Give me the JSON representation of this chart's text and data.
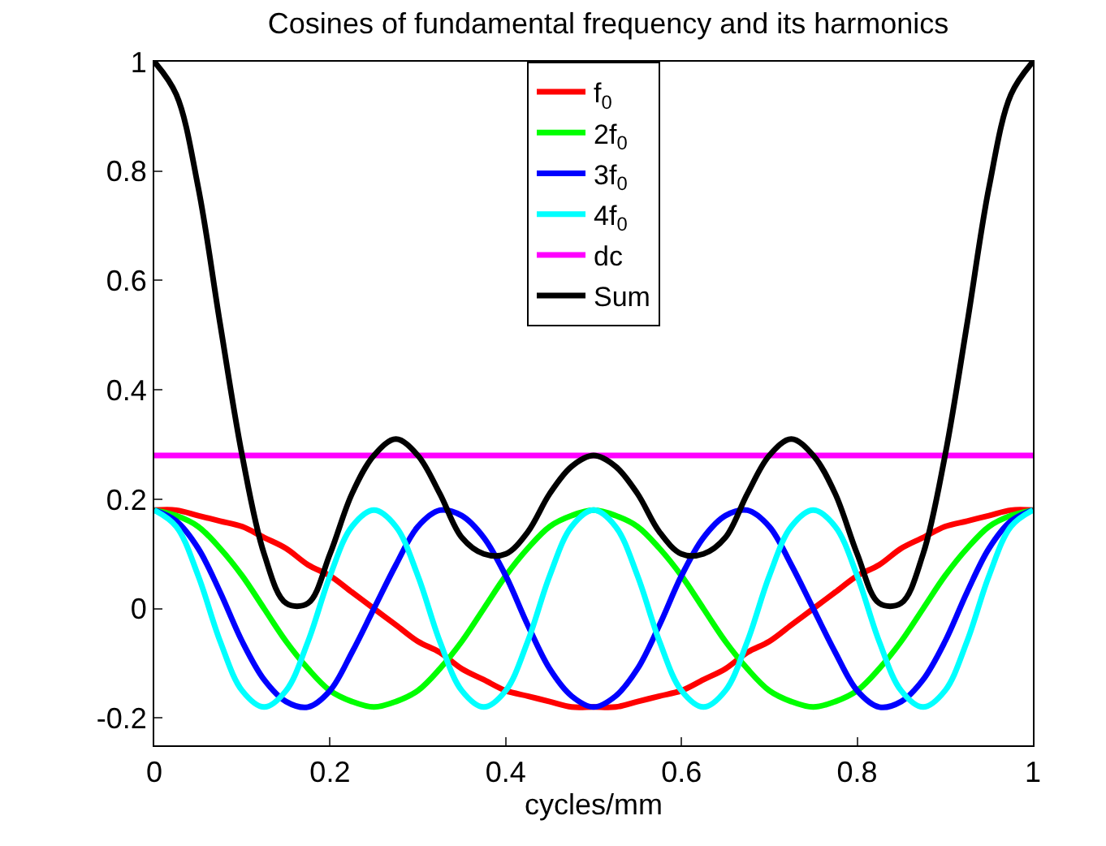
{
  "chart_data": {
    "type": "line",
    "title": "Cosines of fundamental frequency and its harmonics",
    "xlabel": "cycles/mm",
    "x": [
      0,
      0.025,
      0.05,
      0.075,
      0.1,
      0.125,
      0.15,
      0.175,
      0.2,
      0.225,
      0.25,
      0.275,
      0.3,
      0.325,
      0.35,
      0.375,
      0.4,
      0.425,
      0.45,
      0.475,
      0.5,
      0.525,
      0.55,
      0.575,
      0.6,
      0.625,
      0.65,
      0.675,
      0.7,
      0.725,
      0.75,
      0.775,
      0.8,
      0.825,
      0.85,
      0.875,
      0.9,
      0.925,
      0.95,
      0.975,
      1
    ],
    "series": [
      {
        "name": "f$_{0}$",
        "color": "#ff0000",
        "values": [
          0.18,
          0.18,
          0.17,
          0.16,
          0.15,
          0.13,
          0.11,
          0.08,
          0.06,
          0.03,
          0,
          -0.03,
          -0.06,
          -0.08,
          -0.11,
          -0.13,
          -0.15,
          -0.16,
          -0.17,
          -0.18,
          -0.18,
          -0.18,
          -0.17,
          -0.16,
          -0.15,
          -0.13,
          -0.11,
          -0.08,
          -0.06,
          -0.03,
          0,
          0.03,
          0.06,
          0.08,
          0.11,
          0.13,
          0.15,
          0.16,
          0.17,
          0.18,
          0.18
        ]
      },
      {
        "name": "2f$_{0}$",
        "color": "#00ff00",
        "values": [
          0.18,
          0.17,
          0.15,
          0.11,
          0.06,
          0,
          -0.06,
          -0.11,
          -0.15,
          -0.17,
          -0.18,
          -0.17,
          -0.15,
          -0.11,
          -0.06,
          0,
          0.06,
          0.11,
          0.15,
          0.17,
          0.18,
          0.17,
          0.15,
          0.11,
          0.06,
          0,
          -0.06,
          -0.11,
          -0.15,
          -0.17,
          -0.18,
          -0.17,
          -0.15,
          -0.11,
          -0.06,
          0,
          0.06,
          0.11,
          0.15,
          0.17,
          0.18
        ]
      },
      {
        "name": "3f$_{0}$",
        "color": "#0000ff",
        "values": [
          0.18,
          0.16,
          0.11,
          0.03,
          -0.06,
          -0.13,
          -0.17,
          -0.18,
          -0.15,
          -0.08,
          0,
          0.08,
          0.15,
          0.18,
          0.17,
          0.13,
          0.06,
          -0.03,
          -0.11,
          -0.16,
          -0.18,
          -0.16,
          -0.11,
          -0.03,
          0.06,
          0.13,
          0.17,
          0.18,
          0.15,
          0.08,
          0,
          -0.08,
          -0.15,
          -0.18,
          -0.17,
          -0.13,
          -0.06,
          0.03,
          0.11,
          0.16,
          0.18
        ]
      },
      {
        "name": "4f$_{0}$",
        "color": "#00ffff",
        "values": [
          0.18,
          0.15,
          0.06,
          -0.06,
          -0.15,
          -0.18,
          -0.15,
          -0.06,
          0.06,
          0.15,
          0.18,
          0.15,
          0.06,
          -0.06,
          -0.15,
          -0.18,
          -0.15,
          -0.06,
          0.06,
          0.15,
          0.18,
          0.15,
          0.06,
          -0.06,
          -0.15,
          -0.18,
          -0.15,
          -0.06,
          0.06,
          0.15,
          0.18,
          0.15,
          0.06,
          -0.06,
          -0.15,
          -0.18,
          -0.15,
          -0.06,
          0.06,
          0.15,
          0.18
        ]
      },
      {
        "name": "dc",
        "color": "#ff00ff",
        "x": [
          0,
          1
        ],
        "values": [
          0.28,
          0.28
        ]
      },
      {
        "name": "Sum",
        "color": "#000000",
        "values": [
          1.0,
          0.94,
          0.77,
          0.52,
          0.28,
          0.1,
          0.01,
          0.01,
          0.1,
          0.21,
          0.28,
          0.31,
          0.28,
          0.21,
          0.13,
          0.1,
          0.1,
          0.14,
          0.21,
          0.26,
          0.28,
          0.26,
          0.21,
          0.14,
          0.1,
          0.1,
          0.13,
          0.21,
          0.28,
          0.31,
          0.28,
          0.21,
          0.1,
          0.01,
          0.01,
          0.1,
          0.28,
          0.52,
          0.77,
          0.94,
          1.0
        ]
      }
    ],
    "xlim": [
      0,
      1
    ],
    "xticks": [
      0,
      0.2,
      0.4,
      0.6,
      0.8,
      1
    ],
    "ylim": [
      -0.25,
      1
    ],
    "yticks": [
      -0.2,
      0,
      0.2,
      0.4,
      0.6,
      0.8,
      1
    ],
    "legend": "top",
    "line_style": "solid",
    "marker": "none"
  }
}
